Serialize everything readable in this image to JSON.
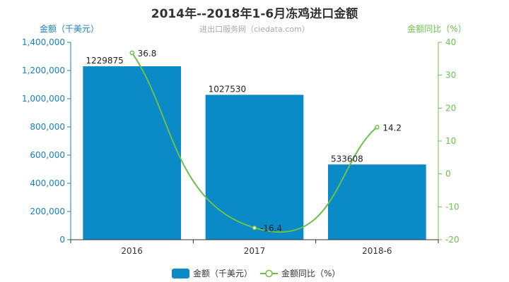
{
  "chart_data": {
    "type": "bar",
    "title": "2014年--2018年1-6月冻鸡进口金额",
    "subtitle": "进出口服务网（ciedata.com）",
    "categories": [
      "2016",
      "2017",
      "2018-6"
    ],
    "series": [
      {
        "name": "金额（千美元）",
        "type": "bar",
        "axis": "left",
        "values": [
          1229875,
          1027530,
          533608
        ],
        "color": "#0a8ac7"
      },
      {
        "name": "金额同比（%）",
        "type": "line",
        "axis": "right",
        "values": [
          36.8,
          -16.4,
          14.2
        ],
        "color": "#6cc04a"
      }
    ],
    "y_left": {
      "label": "金额（千美元）",
      "range": [
        0,
        1400000
      ],
      "ticks": [
        "0",
        "200,000",
        "400,000",
        "600,000",
        "800,000",
        "1,000,000",
        "1,200,000",
        "1,400,000"
      ],
      "color": "#1a7fc1"
    },
    "y_right": {
      "label": "金额同比（%）",
      "range": [
        -20,
        40
      ],
      "ticks": [
        "-20",
        "-10",
        "0",
        "10",
        "20",
        "30",
        "40"
      ],
      "color": "#6cc04a"
    },
    "data_labels": {
      "bar": [
        "1229875",
        "1027530",
        "533608"
      ],
      "line": [
        "36.8",
        "-16.4",
        "14.2"
      ]
    },
    "legend": {
      "placement": "bottom-center",
      "items": [
        "金额（千美元）",
        "金额同比（%）"
      ]
    },
    "grid": false
  }
}
